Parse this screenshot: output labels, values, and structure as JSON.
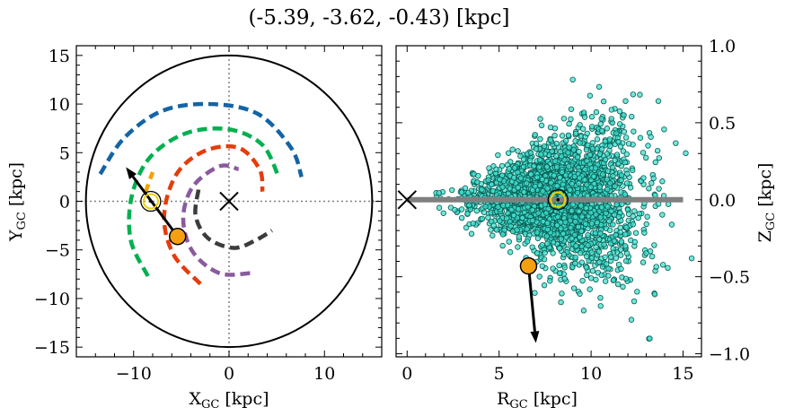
{
  "chart_data": [
    {
      "type": "scatter",
      "title": "(-5.39, -3.62, -0.43) [kpc]",
      "xlabel": "X_GC [kpc]",
      "ylabel": "Y_GC [kpc]",
      "xlim": [
        -16,
        16
      ],
      "ylim": [
        -16,
        16
      ],
      "xticks": [
        "−10",
        "0",
        "10"
      ],
      "yticks": [
        "−15",
        "−10",
        "−5",
        "0",
        "5",
        "10",
        "15"
      ],
      "boundary_circle_radius": 15,
      "galactic_center": [
        0,
        0
      ],
      "sun": [
        -8.2,
        0
      ],
      "object": [
        -5.39,
        -3.62
      ],
      "velocity_arrow_end": [
        -10.8,
        3.5
      ],
      "spiral_arms": [
        {
          "color": "#1464a5",
          "points": [
            [
              -13.5,
              2.8
            ],
            [
              -11,
              6.5
            ],
            [
              -7,
              9.3
            ],
            [
              -2,
              10.0
            ],
            [
              3,
              9.0
            ],
            [
              6.5,
              5.5
            ],
            [
              7.6,
              2.5
            ]
          ]
        },
        {
          "color": "#00b050",
          "points": [
            [
              -8.5,
              -7.7
            ],
            [
              -10.3,
              -4
            ],
            [
              -10.2,
              0.5
            ],
            [
              -8.3,
              4.5
            ],
            [
              -4.5,
              7.0
            ],
            [
              0,
              7.4
            ],
            [
              3.5,
              5.8
            ],
            [
              5.2,
              2.5
            ]
          ]
        },
        {
          "color": "#f5a000",
          "points": [
            [
              -8.8,
              0.8
            ],
            [
              -8.0,
              3.0
            ]
          ]
        },
        {
          "color": "#e63c0a",
          "points": [
            [
              -3.0,
              -8.5
            ],
            [
              -5.8,
              -5.5
            ],
            [
              -6.8,
              -1.5
            ],
            [
              -5.5,
              2.8
            ],
            [
              -2.5,
              5.2
            ],
            [
              1.0,
              5.5
            ],
            [
              3.2,
              3.3
            ],
            [
              3.5,
              1.0
            ]
          ]
        },
        {
          "color": "#8a5a9e",
          "points": [
            [
              2.2,
              -7.4
            ],
            [
              -1.0,
              -7.4
            ],
            [
              -3.8,
              -5.2
            ],
            [
              -4.8,
              -1.8
            ],
            [
              -3.8,
              1.5
            ],
            [
              -1.0,
              3.6
            ],
            [
              1.0,
              3.3
            ]
          ]
        },
        {
          "color": "#3c3c3c",
          "points": [
            [
              -3.2,
              1.2
            ],
            [
              -3.5,
              -1.5
            ],
            [
              -2.2,
              -3.8
            ],
            [
              0.5,
              -4.8
            ],
            [
              2.8,
              -4.0
            ],
            [
              4.5,
              -3.0
            ]
          ]
        }
      ]
    },
    {
      "type": "scatter",
      "xlabel": "R_GC [kpc]",
      "ylabel": "Z_GC [kpc]",
      "xlim": [
        -0.6,
        16
      ],
      "ylim": [
        -1.02,
        1.0
      ],
      "xticks": [
        "0",
        "5",
        "10",
        "15"
      ],
      "yticks": [
        "−1.0",
        "−0.5",
        "0.0",
        "0.5",
        "1.0"
      ],
      "disk_line": {
        "x": [
          0,
          15
        ],
        "z": 0
      },
      "galactic_center": [
        0,
        0
      ],
      "sun": [
        8.2,
        0
      ],
      "object": [
        6.6,
        -0.43
      ],
      "velocity_arrow_end": [
        7.0,
        -0.93
      ],
      "star_cloud": {
        "count": 2600,
        "color": "#40e0d0",
        "r_range": [
          1.5,
          15.5
        ],
        "z_spread_at_r": [
          [
            2,
            0.05
          ],
          [
            6,
            0.12
          ],
          [
            10,
            0.25
          ],
          [
            14,
            0.38
          ]
        ]
      }
    }
  ],
  "labels": {
    "title": "(-5.39, -3.62, -0.43) [kpc]",
    "left": {
      "x_main": "X",
      "x_sub": "GC",
      "x_unit": " [kpc]",
      "y_main": "Y",
      "y_sub": "GC",
      "y_unit": " [kpc]"
    },
    "right": {
      "x_main": "R",
      "x_sub": "GC",
      "x_unit": " [kpc]",
      "y_main": "Z",
      "y_sub": "GC",
      "y_unit": " [kpc]"
    }
  },
  "colors": {
    "object_marker": "#f5a010",
    "sun_marker": "#f0d000",
    "disk_line": "#808080",
    "boundary": "#000000"
  }
}
